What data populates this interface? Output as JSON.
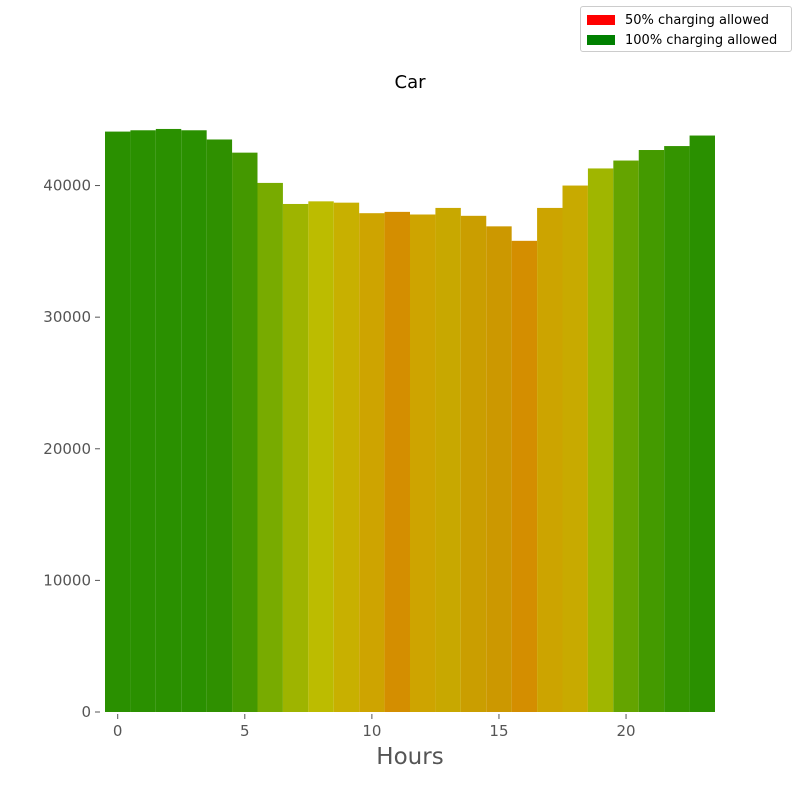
{
  "chart_data": {
    "type": "bar",
    "title": "Car",
    "xlabel": "Hours",
    "ylabel": "",
    "x": [
      0,
      1,
      2,
      3,
      4,
      5,
      6,
      7,
      8,
      9,
      10,
      11,
      12,
      13,
      14,
      15,
      16,
      17,
      18,
      19,
      20,
      21,
      22,
      23
    ],
    "values": [
      44100,
      44200,
      44300,
      44200,
      43500,
      42500,
      40200,
      38600,
      38800,
      38700,
      37900,
      38000,
      37800,
      38300,
      37700,
      36900,
      35800,
      38300,
      40000,
      41300,
      41900,
      42700,
      43000,
      43800
    ],
    "colors": [
      "#2a9000",
      "#2a9000",
      "#2a9000",
      "#2a9000",
      "#2f9000",
      "#449800",
      "#78ab00",
      "#9eb400",
      "#bcbc00",
      "#c8b000",
      "#cea400",
      "#d48e00",
      "#cea400",
      "#c8a800",
      "#ca9e00",
      "#cc9800",
      "#d48e00",
      "#cca400",
      "#c8aa00",
      "#a0b600",
      "#64a400",
      "#449a00",
      "#349400",
      "#2a9000"
    ],
    "xlim": [
      -0.5,
      23.5
    ],
    "ylim": [
      0,
      46500
    ],
    "xticks": [
      0,
      5,
      10,
      15,
      20
    ],
    "yticks": [
      0,
      10000,
      20000,
      30000,
      40000
    ],
    "grid": false,
    "legend_position": "top-right",
    "legend": [
      {
        "label": "50% charging allowed",
        "color": "#ff0000"
      },
      {
        "label": "100% charging allowed",
        "color": "#008000"
      }
    ]
  }
}
